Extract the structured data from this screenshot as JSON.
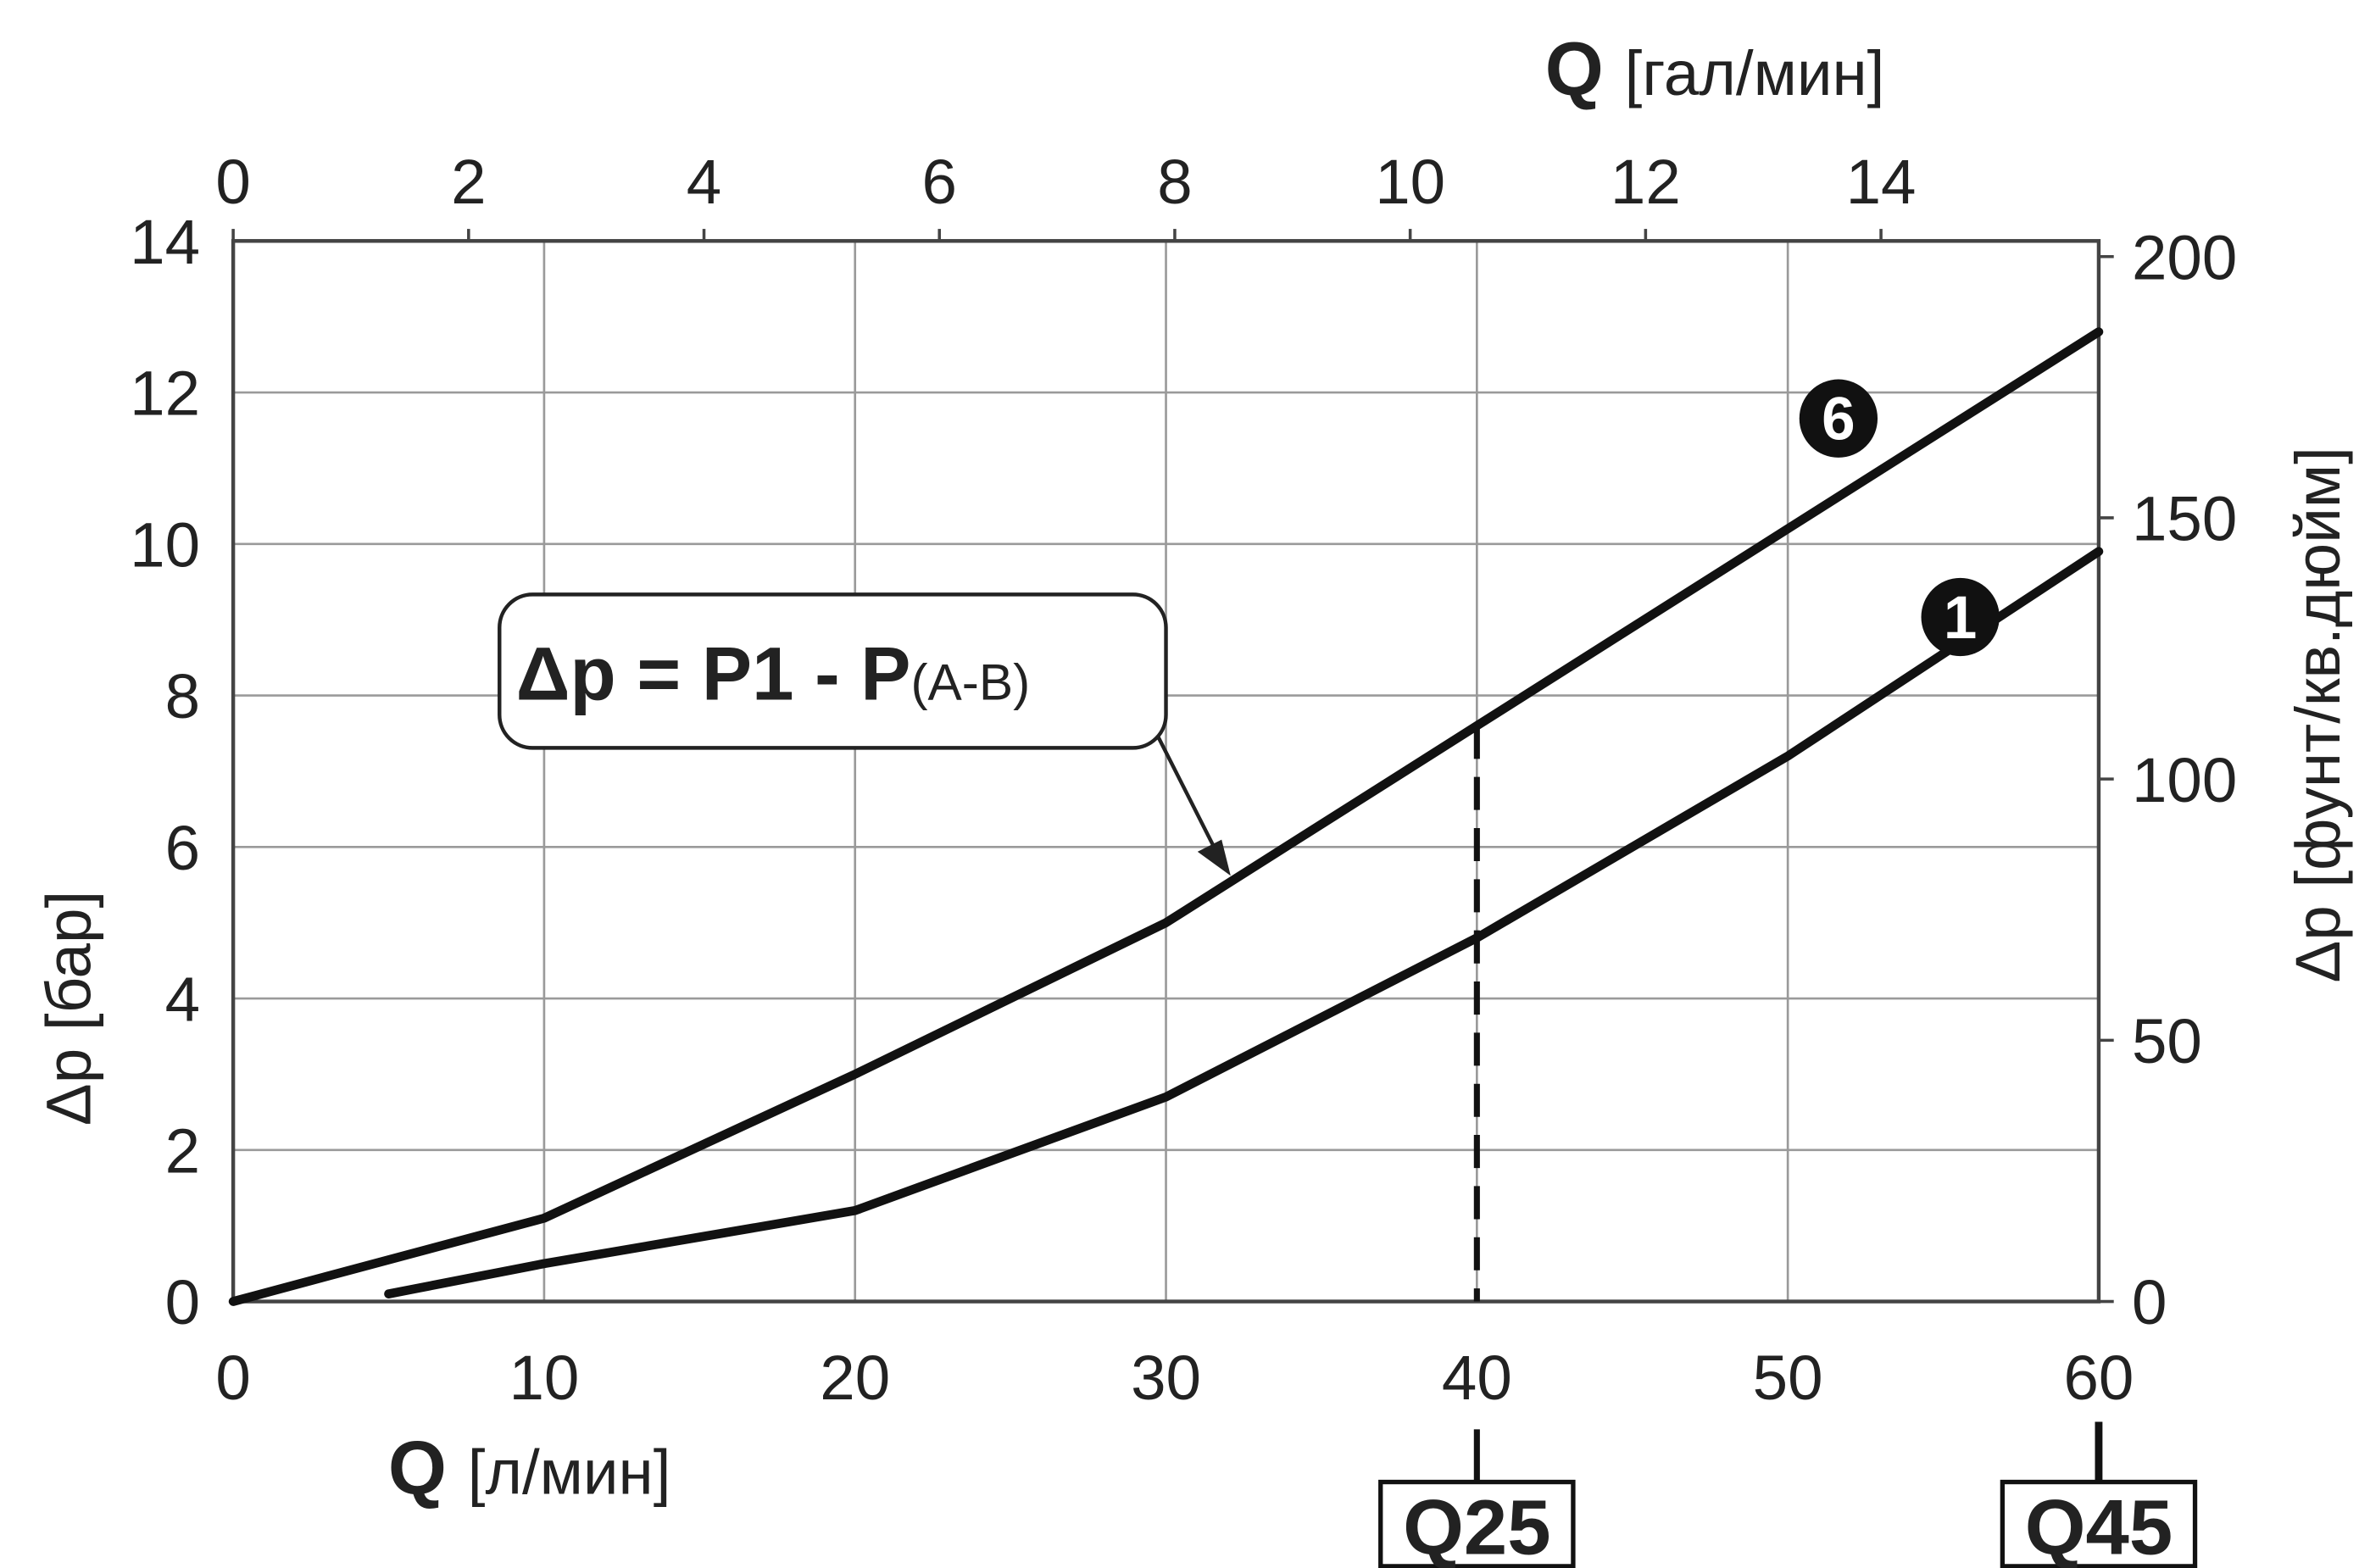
{
  "chart_data": {
    "type": "line",
    "x_label": {
      "symbol": "Q",
      "unit": "[л/мин]"
    },
    "x2_label": {
      "symbol": "Q",
      "unit": "[гал/мин]"
    },
    "y_label": "Δp [бар]",
    "y2_label": "Δp [фунт/кв.дюйм]",
    "xlim": [
      0,
      60
    ],
    "xticks": [
      0,
      10,
      20,
      30,
      40,
      50,
      60
    ],
    "x2lim": [
      0,
      15.85
    ],
    "x2ticks": [
      0,
      2,
      4,
      6,
      8,
      10,
      12,
      14
    ],
    "ylim": [
      0,
      14
    ],
    "yticks": [
      0,
      2,
      4,
      6,
      8,
      10,
      12,
      14
    ],
    "y2lim": [
      0,
      203
    ],
    "y2ticks": [
      0,
      50,
      100,
      150,
      200
    ],
    "grid": true,
    "series": [
      {
        "name": "6",
        "color": "#111111",
        "x": [
          0,
          10,
          20,
          30,
          40,
          50,
          60
        ],
        "values": [
          0,
          1.1,
          3.0,
          5.0,
          7.6,
          10.2,
          12.8
        ]
      },
      {
        "name": "1",
        "color": "#111111",
        "x": [
          5,
          10,
          20,
          30,
          40,
          50,
          60
        ],
        "values": [
          0.1,
          0.5,
          1.2,
          2.7,
          4.8,
          7.2,
          9.9
        ]
      }
    ],
    "annotation": {
      "main": "Δp = P1 - P",
      "sub": "(A-B)"
    },
    "markers": [
      {
        "x": 40,
        "label": "Q25"
      },
      {
        "x": 60,
        "label": "Q45"
      }
    ]
  }
}
